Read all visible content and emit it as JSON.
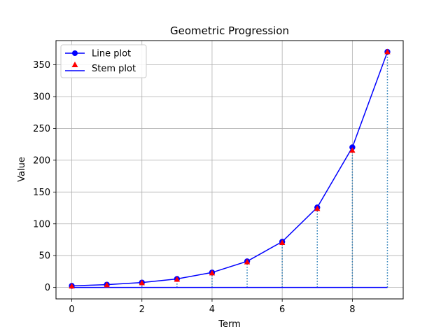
{
  "chart_data": {
    "type": "line",
    "title": "Geometric Progression",
    "xlabel": "Term",
    "ylabel": "Value",
    "x": [
      0,
      1,
      2,
      3,
      4,
      5,
      6,
      7,
      8,
      9
    ],
    "series": [
      {
        "name": "Line  plot",
        "kind": "line",
        "color": "#0000ff",
        "marker": "circle",
        "values": [
          2.5,
          4.4,
          7.7,
          13.4,
          23.5,
          41.1,
          71.9,
          125.8,
          220.2,
          370.3
        ]
      },
      {
        "name": "Stem  plot",
        "kind": "stem",
        "color": "#ff0000",
        "stem_color": "#1f77b4",
        "baseline_color": "#0000ff",
        "marker": "triangle-up",
        "values": [
          2.0,
          3.9,
          7.2,
          12.6,
          22.6,
          40.0,
          70.3,
          123.8,
          215.4,
          370.3
        ]
      }
    ],
    "xlim": [
      -0.45,
      9.45
    ],
    "ylim": [
      -18,
      388
    ],
    "xticks": [
      "0",
      "2",
      "4",
      "6",
      "8"
    ],
    "xtick_values": [
      0,
      2,
      4,
      6,
      8
    ],
    "yticks": [
      "0",
      "50",
      "100",
      "150",
      "200",
      "250",
      "300",
      "350"
    ],
    "ytick_values": [
      0,
      50,
      100,
      150,
      200,
      250,
      300,
      350
    ],
    "grid": true,
    "legend_position": "upper left"
  }
}
